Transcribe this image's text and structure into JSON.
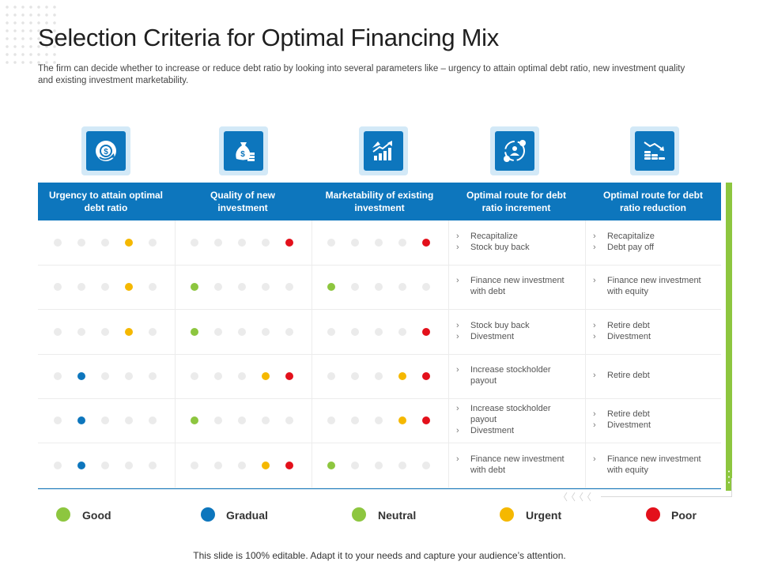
{
  "title": "Selection Criteria for Optimal Financing Mix",
  "subtitle": "The firm can decide whether to increase or reduce debt ratio by looking into several parameters like – urgency to attain optimal debt ratio, new investment quality and existing investment marketability.",
  "colors": {
    "primary": "#0d76bd",
    "icon_bg": "#d3e9f7",
    "good": "#8dc63f",
    "gradual": "#0d76bd",
    "neutral": "#8dc63f",
    "urgent": "#f5b800",
    "poor": "#e3101b",
    "inactive": "#ebebeb"
  },
  "icons": [
    "money-circle-arrow-icon",
    "money-bag-icon",
    "growth-chart-icon",
    "dollar-cycle-icon",
    "coin-stack-chart-icon"
  ],
  "columns": [
    "Urgency to attain optimal debt ratio",
    "Quality of new investment",
    "Marketability  of existing investment",
    "Optimal route for debt ratio increment",
    "Optimal route for debt ratio reduction"
  ],
  "rows": [
    {
      "ratings": [
        4,
        5,
        5
      ],
      "increment": [
        "Recapitalize",
        "Stock buy back"
      ],
      "reduction": [
        "Recapitalize",
        "Debt pay off"
      ]
    },
    {
      "ratings": [
        4,
        1,
        1
      ],
      "increment": [
        "Finance new investment with debt"
      ],
      "reduction": [
        "Finance new investment with equity"
      ]
    },
    {
      "ratings": [
        4,
        1,
        5
      ],
      "increment": [
        "Stock buy back",
        "Divestment"
      ],
      "reduction": [
        "Retire debt",
        "Divestment"
      ]
    },
    {
      "ratings": [
        2,
        45,
        45
      ],
      "increment": [
        "Increase stockholder payout"
      ],
      "reduction": [
        "Retire debt"
      ]
    },
    {
      "ratings": [
        2,
        1,
        45
      ],
      "increment": [
        "Increase stockholder payout",
        "Divestment"
      ],
      "reduction": [
        "Retire debt",
        "Divestment"
      ]
    },
    {
      "ratings": [
        2,
        45,
        1
      ],
      "increment": [
        "Finance new investment with debt"
      ],
      "reduction": [
        "Finance new investment with equity"
      ]
    }
  ],
  "legend": [
    {
      "label": "Good",
      "color": "#8dc63f"
    },
    {
      "label": "Gradual",
      "color": "#0d76bd"
    },
    {
      "label": "Neutral",
      "color": "#8dc63f"
    },
    {
      "label": "Urgent",
      "color": "#f5b800"
    },
    {
      "label": "Poor",
      "color": "#e3101b"
    }
  ],
  "footer": "This slide is 100% editable. Adapt it to your needs and capture your audience’s attention."
}
